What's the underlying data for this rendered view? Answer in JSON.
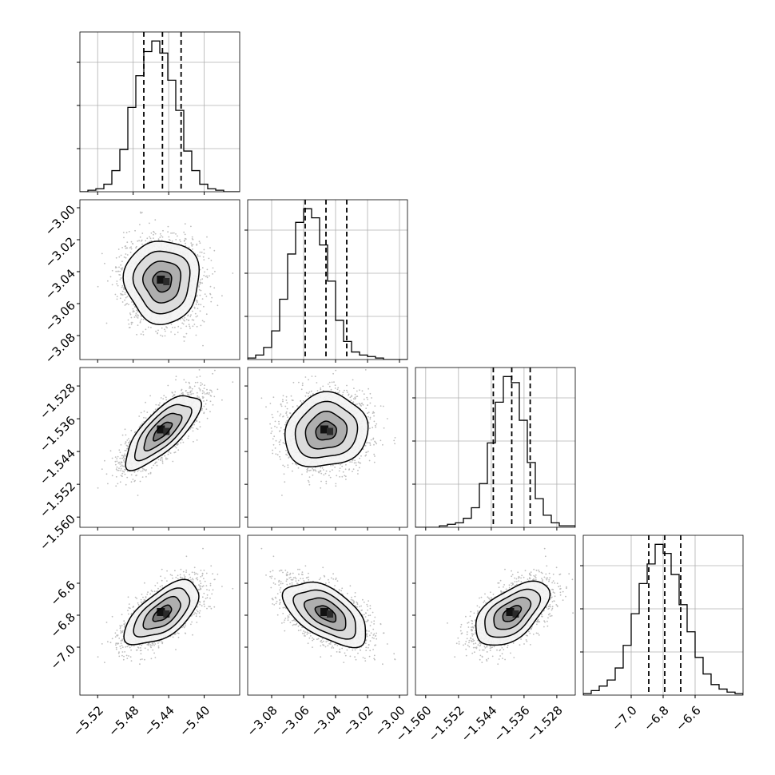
{
  "chart_data": {
    "type": "corner",
    "description_labels": [],
    "grid": true,
    "parameters": [
      {
        "range": [
          -5.54,
          -5.36
        ],
        "ticks": [
          -5.52,
          -5.48,
          -5.44,
          -5.4
        ],
        "tick_labels": [
          "−5.52",
          "−5.48",
          "−5.44",
          "−5.40"
        ],
        "mean": -5.447,
        "sd": 0.021,
        "quantiles": [
          -5.468,
          -5.447,
          -5.426
        ],
        "hist": [
          0,
          1,
          2,
          5,
          14,
          28,
          56,
          77,
          93,
          100,
          92,
          74,
          54,
          27,
          14,
          5,
          2,
          1,
          0,
          0
        ]
      },
      {
        "range": [
          -3.095,
          -2.995
        ],
        "ticks": [
          -3.08,
          -3.06,
          -3.04,
          -3.02,
          -3.0
        ],
        "tick_labels": [
          "−3.08",
          "−3.06",
          "−3.04",
          "−3.02",
          "−3.00"
        ],
        "mean": -3.046,
        "sd": 0.013,
        "quantiles": [
          -3.059,
          -3.046,
          -3.033
        ],
        "hist": [
          1,
          3,
          8,
          19,
          40,
          70,
          91,
          100,
          94,
          76,
          52,
          26,
          12,
          5,
          3,
          2,
          1,
          0,
          0,
          0
        ]
      },
      {
        "range": [
          -1.5625,
          -1.5235
        ],
        "ticks": [
          -1.56,
          -1.552,
          -1.544,
          -1.536,
          -1.528
        ],
        "tick_labels": [
          "−1.560",
          "−1.552",
          "−1.544",
          "−1.536",
          "−1.528"
        ],
        "mean": -1.539,
        "sd": 0.0045,
        "quantiles": [
          -1.5435,
          -1.539,
          -1.5345
        ],
        "hist": [
          0,
          0,
          0,
          1,
          2,
          3,
          6,
          13,
          29,
          56,
          83,
          100,
          96,
          71,
          43,
          19,
          8,
          3,
          1,
          1
        ]
      },
      {
        "range": [
          -7.3,
          -6.3
        ],
        "ticks": [
          -7.0,
          -6.8,
          -6.6
        ],
        "tick_labels": [
          "−7.0",
          "−6.8",
          "−6.6"
        ],
        "mean": -6.79,
        "sd": 0.1,
        "quantiles": [
          -6.89,
          -6.79,
          -6.69
        ],
        "hist": [
          1,
          3,
          6,
          10,
          18,
          33,
          54,
          74,
          87,
          100,
          94,
          80,
          60,
          42,
          25,
          14,
          7,
          4,
          2,
          1
        ]
      }
    ],
    "correlations": [
      [
        1,
        0,
        0.75,
        0.62
      ],
      [
        0,
        1,
        0.1,
        -0.55
      ],
      [
        0.75,
        0.1,
        1,
        0.55
      ],
      [
        0.62,
        -0.55,
        0.55,
        1
      ]
    ],
    "contour_sigma_levels": [
      0.5,
      1.0,
      1.5,
      2.0
    ]
  }
}
